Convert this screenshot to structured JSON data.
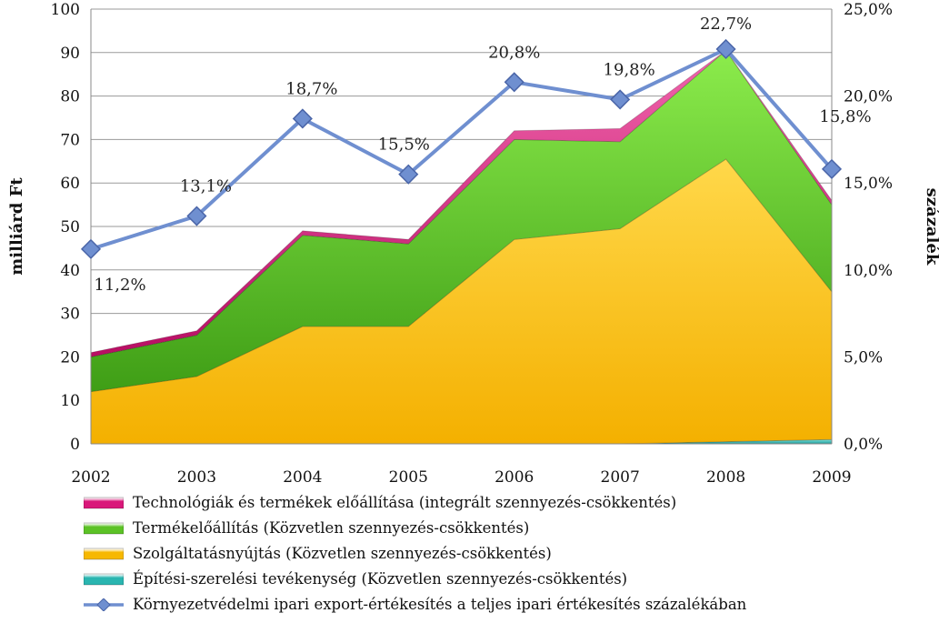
{
  "chart_data": {
    "type": "area",
    "x": [
      "2002",
      "2003",
      "2004",
      "2005",
      "2006",
      "2007",
      "2008",
      "2009"
    ],
    "ylabel": "milliárd Ft",
    "y2label": "százalék",
    "ylim": [
      0,
      100
    ],
    "yticks": [
      "0",
      "10",
      "20",
      "30",
      "40",
      "50",
      "60",
      "70",
      "80",
      "90",
      "100"
    ],
    "y2lim": [
      0,
      25
    ],
    "y2ticks": [
      "0,0%",
      "5,0%",
      "10,0%",
      "15,0%",
      "20,0%",
      "25,0%"
    ],
    "grid": true,
    "stacked": true,
    "series": [
      {
        "name": "Építési-szerelési tevékenység (Közvetlen szennyezés-csökkentés)",
        "color": "#2ab5b0",
        "axis": "left",
        "values": [
          0,
          0,
          0,
          0,
          0,
          0,
          0.5,
          1
        ]
      },
      {
        "name": "Szolgáltatásnyújtás (Közvetlen szennyezés-csökkentés)",
        "color": "#f7b800",
        "axis": "left",
        "values": [
          12,
          15.5,
          27,
          27,
          47,
          49.5,
          65,
          34
        ]
      },
      {
        "name": "Termékelőállítás (Közvetlen szennyezés-csökkentés)",
        "color": "#5cc226",
        "axis": "left",
        "values": [
          8,
          9.5,
          21,
          19,
          23,
          20,
          25,
          20
        ]
      },
      {
        "name": "Technológiák és termékek előállítása (integrált szennyezés-csökkentés)",
        "color": "#d9187a",
        "axis": "left",
        "values": [
          1,
          1,
          1,
          1,
          2,
          3,
          0,
          1
        ]
      }
    ],
    "line_series": {
      "name": "Környezetvédelmi ipari export-értékesítés a teljes ipari értékesítés százalékában",
      "color": "#6f8fd0",
      "axis": "right",
      "values": [
        11.2,
        13.1,
        18.7,
        15.5,
        20.8,
        19.8,
        22.7,
        15.8
      ],
      "labels": [
        "11,2%",
        "13,1%",
        "18,7%",
        "15,5%",
        "20,8%",
        "19,8%",
        "22,7%",
        "15,8%"
      ]
    },
    "legend_order": [
      3,
      2,
      1,
      0,
      "line"
    ],
    "legend_position": "bottom"
  }
}
